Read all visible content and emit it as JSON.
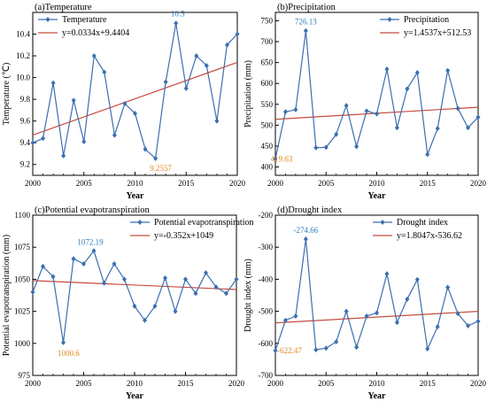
{
  "chart_data": [
    {
      "id": "temp",
      "type": "line",
      "title": "(a)Temperature",
      "xlabel": "Year",
      "ylabel": "Temperature (℃)",
      "xlim": [
        2000,
        2020
      ],
      "ylim": [
        9.1,
        10.6
      ],
      "xticks": [
        "2000",
        "2005",
        "2010",
        "2015",
        "2020"
      ],
      "yticks": [
        "9.2",
        "9.4",
        "9.6",
        "9.8",
        "10.0",
        "10.2",
        "10.4"
      ],
      "x": [
        2000,
        2001,
        2002,
        2003,
        2004,
        2005,
        2006,
        2007,
        2008,
        2009,
        2010,
        2011,
        2012,
        2013,
        2014,
        2015,
        2016,
        2017,
        2018,
        2019,
        2020
      ],
      "series": [
        {
          "name": "Temperature",
          "values": [
            9.4,
            9.44,
            9.95,
            9.28,
            9.79,
            9.41,
            10.2,
            10.05,
            9.47,
            9.76,
            9.67,
            9.34,
            9.2557,
            9.96,
            10.5,
            9.9,
            10.2,
            10.11,
            9.6,
            10.3,
            10.4
          ]
        }
      ],
      "trend_label": "y=0.0334x+9.4404",
      "trend": {
        "start": 9.47,
        "end": 10.14
      },
      "annotations": [
        {
          "text": "10.5",
          "x": 2014,
          "y": 10.5,
          "color": "blue"
        },
        {
          "text": "9.2557",
          "x": 2012,
          "y": 9.2557,
          "color": "orange"
        }
      ],
      "legend_position": "top-left"
    },
    {
      "id": "precip",
      "type": "line",
      "title": "(b)Precipitation",
      "xlabel": "Year",
      "ylabel": "Precipitation (mm)",
      "xlim": [
        2000,
        2020
      ],
      "ylim": [
        380,
        770
      ],
      "xticks": [
        "2000",
        "2005",
        "2010",
        "2015",
        "2020"
      ],
      "yticks": [
        "400",
        "450",
        "500",
        "550",
        "600",
        "650",
        "700",
        "750"
      ],
      "x": [
        2000,
        2001,
        2002,
        2003,
        2004,
        2005,
        2006,
        2007,
        2008,
        2009,
        2010,
        2011,
        2012,
        2013,
        2014,
        2015,
        2016,
        2017,
        2018,
        2019,
        2020
      ],
      "series": [
        {
          "name": "Precipitation",
          "values": [
            419.63,
            532,
            537,
            726.13,
            446,
            447,
            478,
            547,
            449,
            534,
            527,
            634,
            494,
            587,
            626,
            430,
            492,
            631,
            540,
            494,
            519
          ]
        }
      ],
      "trend_label": "y=1.4537x+512.53",
      "trend": {
        "start": 514,
        "end": 543
      },
      "annotations": [
        {
          "text": "726.13",
          "x": 2003,
          "y": 726.13,
          "color": "blue"
        },
        {
          "text": "419.63",
          "x": 2000,
          "y": 419.63,
          "color": "orange"
        }
      ],
      "legend_position": "top-right"
    },
    {
      "id": "pet",
      "type": "line",
      "title": "(c)Potential evapotranspiration",
      "xlabel": "Year",
      "ylabel": "Potential evapotranspiration (mm)",
      "xlim": [
        2000,
        2020
      ],
      "ylim": [
        975,
        1100
      ],
      "xticks": [
        "2000",
        "2005",
        "2010",
        "2015",
        "2020"
      ],
      "yticks": [
        "975",
        "1000",
        "1025",
        "1050",
        "1075",
        "1100"
      ],
      "x": [
        2000,
        2001,
        2002,
        2003,
        2004,
        2005,
        2006,
        2007,
        2008,
        2009,
        2010,
        2011,
        2012,
        2013,
        2014,
        2015,
        2016,
        2017,
        2018,
        2019,
        2020
      ],
      "series": [
        {
          "name": "Potential evapotranspiration",
          "values": [
            1040,
            1060,
            1052,
            1000.6,
            1066,
            1062,
            1072.19,
            1047,
            1062,
            1050,
            1029,
            1018,
            1029,
            1051,
            1025,
            1050,
            1039,
            1055,
            1044,
            1039,
            1050
          ]
        }
      ],
      "trend_label": "y=-0.352x+1049",
      "trend": {
        "start": 1049,
        "end": 1042
      },
      "annotations": [
        {
          "text": "1072.19",
          "x": 2006,
          "y": 1072.19,
          "color": "blue"
        },
        {
          "text": "1000.6",
          "x": 2003,
          "y": 1000.6,
          "color": "orange"
        }
      ],
      "legend_position": "top-right"
    },
    {
      "id": "drought",
      "type": "line",
      "title": "(d)Drought index",
      "xlabel": "Year",
      "ylabel": "Drought index (mm)",
      "xlim": [
        2000,
        2020
      ],
      "ylim": [
        -700,
        -200
      ],
      "xticks": [
        "2000",
        "2005",
        "2010",
        "2015",
        "2020"
      ],
      "yticks": [
        "-700",
        "-600",
        "-500",
        "-400",
        "-300",
        "-200"
      ],
      "x": [
        2000,
        2001,
        2002,
        2003,
        2004,
        2005,
        2006,
        2007,
        2008,
        2009,
        2010,
        2011,
        2012,
        2013,
        2014,
        2015,
        2016,
        2017,
        2018,
        2019,
        2020
      ],
      "series": [
        {
          "name": "Drought index",
          "values": [
            -622.47,
            -528,
            -515,
            -274.66,
            -620,
            -615,
            -595,
            -500,
            -612,
            -515,
            -505,
            -383,
            -535,
            -462,
            -401,
            -617,
            -548,
            -425,
            -507,
            -545,
            -531
          ]
        }
      ],
      "trend_label": "y=1.8047x-536.62",
      "trend": {
        "start": -536,
        "end": -500
      },
      "annotations": [
        {
          "text": "-274.66",
          "x": 2003,
          "y": -274.66,
          "color": "blue"
        },
        {
          "text": "-622.47",
          "x": 2000,
          "y": -622.47,
          "color": "orange"
        }
      ],
      "legend_position": "top-right"
    }
  ],
  "colors": {
    "series": "#3b6fb0",
    "trend": "#c84c3c",
    "label_max": "#2f7fbf",
    "label_min": "#e08a1e"
  }
}
